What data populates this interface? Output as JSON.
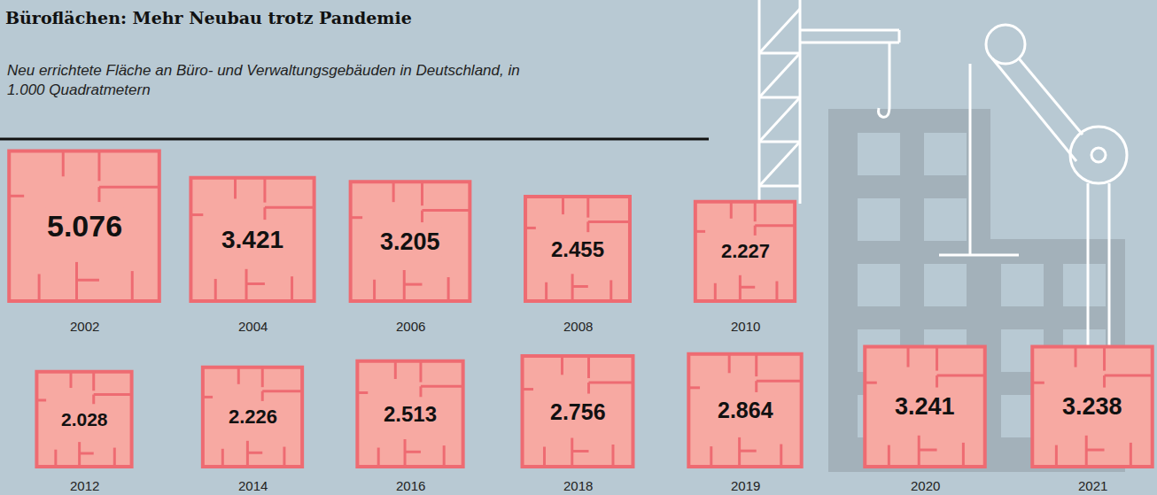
{
  "chart_data": {
    "type": "squares",
    "title": "Büroflächen: Mehr Neubau trotz Pandemie",
    "subtitle": "Neu errichtete Fläche an Büro- und Verwaltungsgebäuden in Deutschland, in 1.000 Quadratmetern",
    "categories": [
      "2002",
      "2004",
      "2006",
      "2008",
      "2010",
      "2012",
      "2014",
      "2016",
      "2018",
      "2019",
      "2020",
      "2021"
    ],
    "values": [
      5076,
      3421,
      3205,
      2455,
      2227,
      2028,
      2226,
      2513,
      2756,
      2864,
      3241,
      3238
    ],
    "value_labels": [
      "5.076",
      "3.421",
      "3.205",
      "2.455",
      "2.227",
      "2.028",
      "2.226",
      "2.513",
      "2.756",
      "2.864",
      "3.241",
      "3.238"
    ],
    "color": "#f7a9a2",
    "data_labels": true
  }
}
